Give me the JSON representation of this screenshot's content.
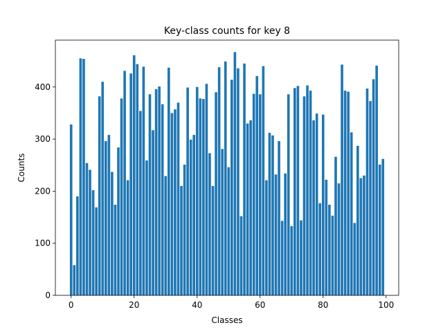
{
  "chart_data": {
    "type": "bar",
    "title": "Key-class counts for key 8",
    "xlabel": "Classes",
    "ylabel": "Counts",
    "bar_color": "#1f77b4",
    "xlim": [
      -5,
      104
    ],
    "ylim": [
      0,
      490
    ],
    "xticks": [
      0,
      20,
      40,
      60,
      80,
      100
    ],
    "yticks": [
      0,
      100,
      200,
      300,
      400
    ],
    "grid": false,
    "x": [
      0,
      1,
      2,
      3,
      4,
      5,
      6,
      7,
      8,
      9,
      10,
      11,
      12,
      13,
      14,
      15,
      16,
      17,
      18,
      19,
      20,
      21,
      22,
      23,
      24,
      25,
      26,
      27,
      28,
      29,
      30,
      31,
      32,
      33,
      34,
      35,
      36,
      37,
      38,
      39,
      40,
      41,
      42,
      43,
      44,
      45,
      46,
      47,
      48,
      49,
      50,
      51,
      52,
      53,
      54,
      55,
      56,
      57,
      58,
      59,
      60,
      61,
      62,
      63,
      64,
      65,
      66,
      67,
      68,
      69,
      70,
      71,
      72,
      73,
      74,
      75,
      76,
      77,
      78,
      79,
      80,
      81,
      82,
      83,
      84,
      85,
      86,
      87,
      88,
      89,
      90,
      91,
      92,
      93,
      94,
      95,
      96,
      97,
      98,
      99
    ],
    "values": [
      328,
      58,
      190,
      455,
      454,
      254,
      241,
      202,
      169,
      382,
      410,
      296,
      308,
      237,
      174,
      284,
      378,
      431,
      221,
      426,
      461,
      444,
      354,
      439,
      259,
      386,
      317,
      396,
      401,
      367,
      229,
      437,
      350,
      357,
      370,
      210,
      251,
      399,
      299,
      308,
      400,
      378,
      377,
      406,
      273,
      210,
      390,
      438,
      281,
      449,
      246,
      414,
      467,
      436,
      152,
      445,
      330,
      336,
      387,
      421,
      386,
      440,
      221,
      312,
      307,
      232,
      296,
      143,
      234,
      386,
      133,
      398,
      402,
      144,
      382,
      403,
      393,
      336,
      349,
      177,
      347,
      222,
      174,
      153,
      266,
      215,
      443,
      393,
      391,
      313,
      139,
      287,
      225,
      230,
      397,
      373,
      415,
      441,
      251,
      262
    ]
  }
}
